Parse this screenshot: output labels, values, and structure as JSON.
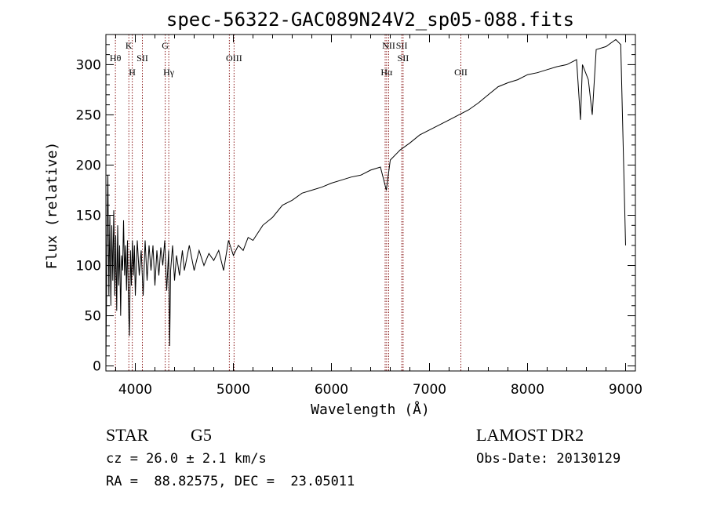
{
  "chart_data": {
    "type": "line",
    "title": "spec-56322-GAC089N24V2_sp05-088.fits",
    "xlabel": "Wavelength (Å)",
    "ylabel": "Flux (relative)",
    "xlim": [
      3700,
      9100
    ],
    "ylim": [
      -5,
      330
    ],
    "x_ticks": [
      4000,
      5000,
      6000,
      7000,
      8000,
      9000
    ],
    "y_ticks": [
      0,
      50,
      100,
      150,
      200,
      250,
      300
    ],
    "series": [
      {
        "points": [
          [
            3700,
            0
          ],
          [
            3710,
            120
          ],
          [
            3720,
            190
          ],
          [
            3730,
            70
          ],
          [
            3740,
            150
          ],
          [
            3750,
            60
          ],
          [
            3760,
            140
          ],
          [
            3770,
            85
          ],
          [
            3780,
            155
          ],
          [
            3790,
            70
          ],
          [
            3800,
            130
          ],
          [
            3810,
            55
          ],
          [
            3820,
            140
          ],
          [
            3830,
            80
          ],
          [
            3840,
            120
          ],
          [
            3850,
            50
          ],
          [
            3860,
            110
          ],
          [
            3870,
            95
          ],
          [
            3880,
            145
          ],
          [
            3890,
            90
          ],
          [
            3900,
            120
          ],
          [
            3910,
            75
          ],
          [
            3920,
            125
          ],
          [
            3930,
            60
          ],
          [
            3940,
            30
          ],
          [
            3950,
            115
          ],
          [
            3960,
            80
          ],
          [
            3970,
            125
          ],
          [
            3980,
            90
          ],
          [
            3990,
            120
          ],
          [
            4000,
            70
          ],
          [
            4020,
            125
          ],
          [
            4040,
            90
          ],
          [
            4060,
            115
          ],
          [
            4080,
            70
          ],
          [
            4100,
            125
          ],
          [
            4120,
            85
          ],
          [
            4140,
            120
          ],
          [
            4160,
            95
          ],
          [
            4180,
            120
          ],
          [
            4200,
            80
          ],
          [
            4220,
            115
          ],
          [
            4240,
            90
          ],
          [
            4260,
            118
          ],
          [
            4280,
            100
          ],
          [
            4300,
            125
          ],
          [
            4320,
            75
          ],
          [
            4340,
            115
          ],
          [
            4350,
            20
          ],
          [
            4360,
            95
          ],
          [
            4380,
            120
          ],
          [
            4400,
            85
          ],
          [
            4420,
            110
          ],
          [
            4450,
            90
          ],
          [
            4480,
            115
          ],
          [
            4500,
            95
          ],
          [
            4550,
            120
          ],
          [
            4600,
            95
          ],
          [
            4650,
            115
          ],
          [
            4700,
            100
          ],
          [
            4750,
            112
          ],
          [
            4800,
            105
          ],
          [
            4850,
            115
          ],
          [
            4900,
            95
          ],
          [
            4950,
            125
          ],
          [
            5000,
            110
          ],
          [
            5050,
            120
          ],
          [
            5100,
            115
          ],
          [
            5150,
            128
          ],
          [
            5200,
            125
          ],
          [
            5300,
            140
          ],
          [
            5400,
            148
          ],
          [
            5500,
            160
          ],
          [
            5600,
            165
          ],
          [
            5700,
            172
          ],
          [
            5800,
            175
          ],
          [
            5900,
            178
          ],
          [
            6000,
            182
          ],
          [
            6100,
            185
          ],
          [
            6200,
            188
          ],
          [
            6300,
            190
          ],
          [
            6400,
            195
          ],
          [
            6500,
            198
          ],
          [
            6560,
            175
          ],
          [
            6600,
            205
          ],
          [
            6700,
            215
          ],
          [
            6800,
            222
          ],
          [
            6900,
            230
          ],
          [
            7000,
            235
          ],
          [
            7100,
            240
          ],
          [
            7200,
            245
          ],
          [
            7300,
            250
          ],
          [
            7400,
            255
          ],
          [
            7500,
            262
          ],
          [
            7600,
            270
          ],
          [
            7700,
            278
          ],
          [
            7800,
            282
          ],
          [
            7900,
            285
          ],
          [
            8000,
            290
          ],
          [
            8100,
            292
          ],
          [
            8200,
            295
          ],
          [
            8300,
            298
          ],
          [
            8400,
            300
          ],
          [
            8500,
            305
          ],
          [
            8540,
            245
          ],
          [
            8560,
            300
          ],
          [
            8620,
            285
          ],
          [
            8660,
            250
          ],
          [
            8700,
            315
          ],
          [
            8800,
            318
          ],
          [
            8900,
            325
          ],
          [
            8950,
            320
          ],
          [
            9000,
            120
          ]
        ]
      }
    ],
    "lines": [
      {
        "wavelength": 3797,
        "label": "Hθ",
        "row": 2
      },
      {
        "wavelength": 3934,
        "label": "K",
        "row": 1
      },
      {
        "wavelength": 3969,
        "label": "H",
        "row": 3
      },
      {
        "wavelength": 4072,
        "label": "SII",
        "row": 2
      },
      {
        "wavelength": 4305,
        "label": "G",
        "row": 1
      },
      {
        "wavelength": 4341,
        "label": "Hγ",
        "row": 3
      },
      {
        "wavelength": 4959,
        "label": "",
        "row": 0
      },
      {
        "wavelength": 5007,
        "label": "OIII",
        "row": 2
      },
      {
        "wavelength": 6548,
        "label": "",
        "row": 0
      },
      {
        "wavelength": 6563,
        "label": "Hα",
        "row": 3
      },
      {
        "wavelength": 6584,
        "label": "NII",
        "row": 1
      },
      {
        "wavelength": 6717,
        "label": "SII",
        "row": 1
      },
      {
        "wavelength": 6731,
        "label": "SII",
        "row": 2
      },
      {
        "wavelength": 7320,
        "label": "OII",
        "row": 3
      }
    ],
    "grid": false,
    "legend": "none"
  },
  "info": {
    "class_label": "STAR",
    "subclass_label": "G5",
    "survey_label": "LAMOST DR2",
    "cz_text": "cz = 26.0 ± 2.1 km/s",
    "obs_date_text": "Obs-Date: 20130129",
    "coords_text": "RA =  88.82575, DEC =  23.05011"
  },
  "colors": {
    "spectrum": "#000000",
    "line_markers": "#8b1a1a",
    "axes": "#000000"
  }
}
